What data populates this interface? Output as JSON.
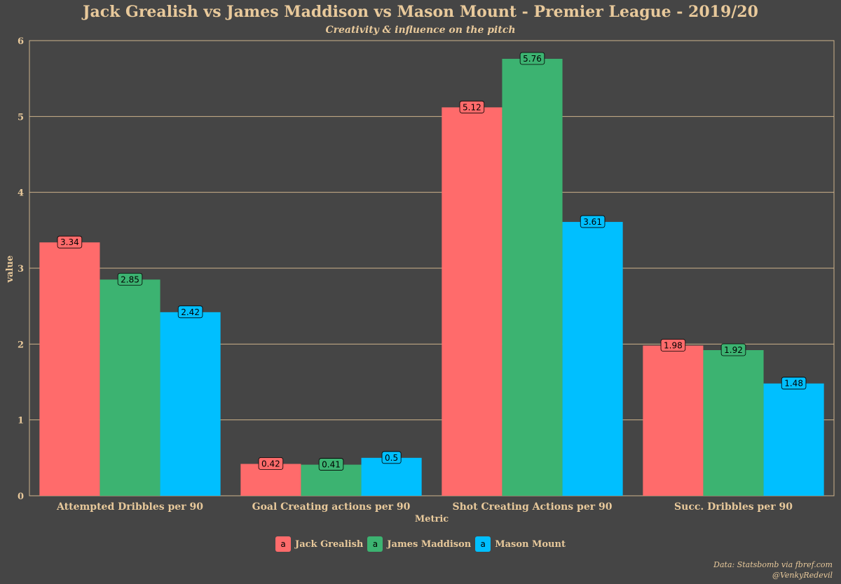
{
  "chart_data": {
    "type": "bar",
    "title": "Jack Grealish vs James Maddison vs Mason Mount - Premier League - 2019/20",
    "subtitle": "Creativity & influence on the pitch",
    "xlabel": "Metric",
    "ylabel": "value",
    "categories": [
      "Attempted Dribbles per 90",
      "Goal Creating actions per 90",
      "Shot Creating Actions per 90",
      "Succ. Dribbles per 90"
    ],
    "series": [
      {
        "name": "Jack Grealish",
        "color": "#FF6B6B",
        "values": [
          3.34,
          0.42,
          5.12,
          1.98
        ]
      },
      {
        "name": "James Maddison",
        "color": "#3CB371",
        "values": [
          2.85,
          0.41,
          5.76,
          1.92
        ]
      },
      {
        "name": "Mason Mount",
        "color": "#00BFFF",
        "values": [
          2.42,
          0.5,
          3.61,
          1.48
        ]
      }
    ],
    "ylim": [
      0,
      6
    ],
    "yticks": [
      0,
      1,
      2,
      3,
      4,
      5,
      6
    ],
    "grid": true,
    "legend_position": "bottom",
    "legend_key_glyph": "a"
  },
  "caption": {
    "line1": "Data: Statsbomb via fbref.com",
    "line2": "@VenkyRedevil"
  }
}
